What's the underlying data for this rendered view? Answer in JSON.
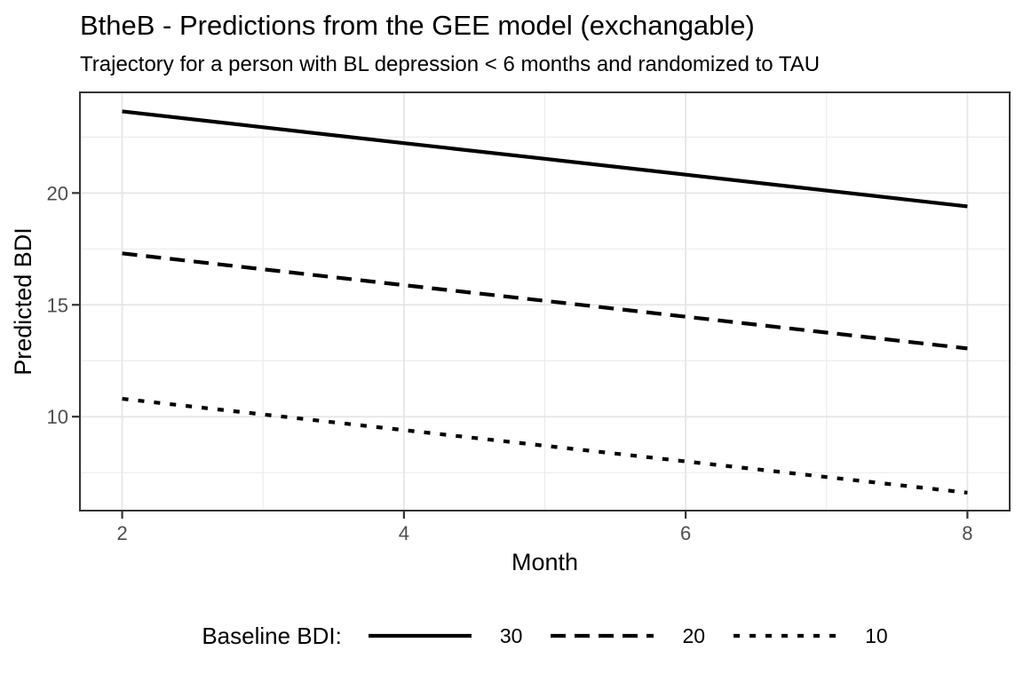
{
  "chart_data": {
    "type": "line",
    "title": "BtheB - Predictions from the GEE model (exchangable)",
    "subtitle": "Trajectory for a person with BL depression < 6 months and randomized to TAU",
    "xlabel": "Month",
    "ylabel": "Predicted BDI",
    "x": [
      2,
      3,
      4,
      5,
      6,
      7,
      8
    ],
    "series": [
      {
        "name": "30",
        "linetype": "solid",
        "color": "#000000",
        "values": [
          23.65,
          22.94,
          22.23,
          21.53,
          20.82,
          20.11,
          19.4
        ]
      },
      {
        "name": "20",
        "linetype": "dashed",
        "color": "#000000",
        "values": [
          17.3,
          16.59,
          15.88,
          15.18,
          14.47,
          13.76,
          13.05
        ]
      },
      {
        "name": "10",
        "linetype": "dotted",
        "color": "#000000",
        "values": [
          10.8,
          10.1,
          9.4,
          8.7,
          8.0,
          7.3,
          6.6
        ]
      }
    ],
    "legend": {
      "title": "Baseline BDI:",
      "position": "bottom"
    },
    "axes": {
      "x": {
        "ticks": [
          2,
          4,
          6,
          8
        ],
        "minor": [
          3,
          5,
          7
        ],
        "range": [
          1.7,
          8.3
        ]
      },
      "y": {
        "ticks": [
          10,
          15,
          20
        ],
        "minor": [
          7.5,
          12.5,
          17.5,
          22.5
        ],
        "range": [
          5.8,
          24.5
        ]
      }
    },
    "grid": "on",
    "theme": {
      "panel_border": "#333333",
      "tick_color": "#333333",
      "grid_major": "#e5e5e5",
      "grid_minor": "#ececec",
      "axis_text": "#4d4d4d",
      "text_color": "#000000",
      "background": "#ffffff"
    }
  }
}
